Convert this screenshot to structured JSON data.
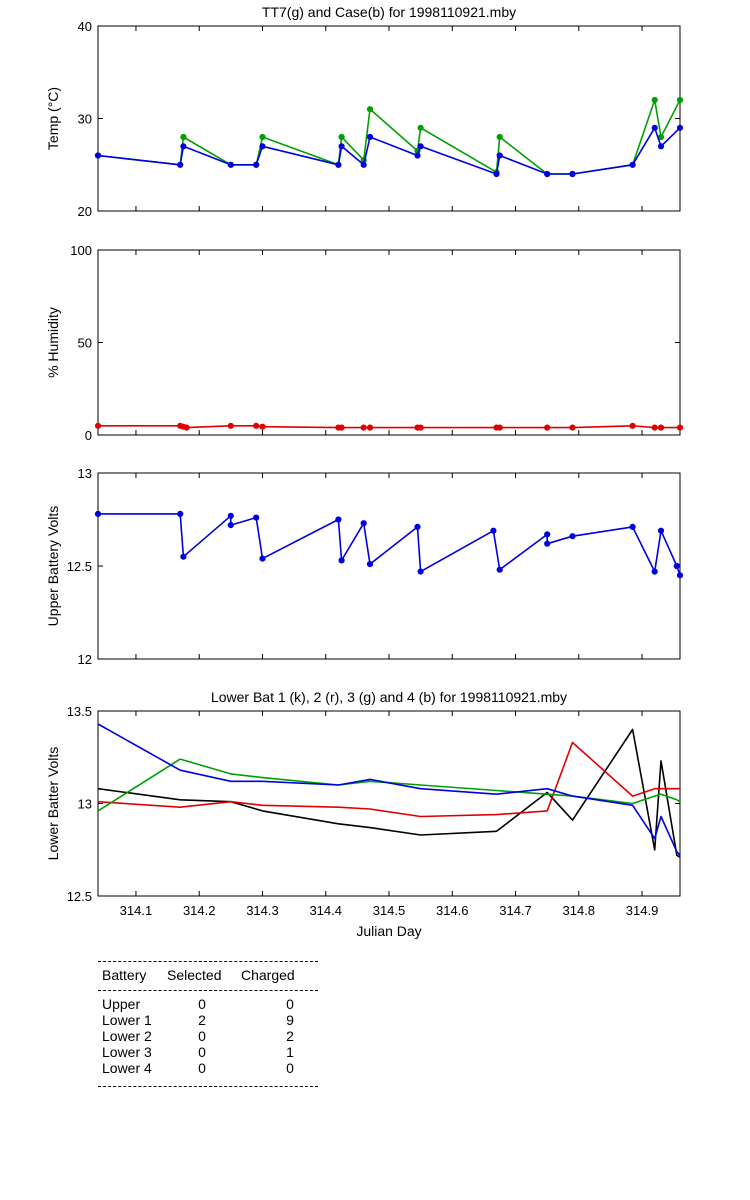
{
  "chart_data": [
    {
      "type": "line",
      "title": "TT7(g) and Case(b) for 1998110921.mby",
      "xlabel": "",
      "ylabel": "Temp  (°C)",
      "xlim": [
        314.04,
        314.96
      ],
      "ylim": [
        20,
        40
      ],
      "yticks": [
        20,
        30,
        40
      ],
      "markers": true,
      "series": [
        {
          "color": "#00a000",
          "x": [
            314.04,
            314.17,
            314.175,
            314.25,
            314.29,
            314.3,
            314.42,
            314.425,
            314.46,
            314.47,
            314.545,
            314.55,
            314.67,
            314.675,
            314.75,
            314.79,
            314.885,
            314.92,
            314.93,
            314.96
          ],
          "y": [
            26,
            25,
            28,
            25,
            25,
            28,
            25,
            28,
            25.5,
            31,
            26.5,
            29,
            24.2,
            28,
            24,
            24,
            25,
            32,
            28,
            32
          ]
        },
        {
          "color": "#0000e0",
          "x": [
            314.04,
            314.17,
            314.175,
            314.25,
            314.29,
            314.3,
            314.42,
            314.425,
            314.46,
            314.47,
            314.545,
            314.55,
            314.67,
            314.675,
            314.75,
            314.79,
            314.885,
            314.92,
            314.93,
            314.96
          ],
          "y": [
            26,
            25,
            27,
            25,
            25,
            27,
            25,
            27,
            25,
            28,
            26,
            27,
            24,
            26,
            24,
            24,
            25,
            29,
            27,
            29
          ]
        }
      ]
    },
    {
      "type": "line",
      "title": "",
      "xlabel": "",
      "ylabel": "% Humidity",
      "xlim": [
        314.04,
        314.96
      ],
      "ylim": [
        0,
        100
      ],
      "yticks": [
        0,
        50,
        100
      ],
      "markers": true,
      "series": [
        {
          "color": "#e00000",
          "x": [
            314.04,
            314.17,
            314.175,
            314.18,
            314.25,
            314.29,
            314.3,
            314.42,
            314.425,
            314.46,
            314.47,
            314.545,
            314.55,
            314.67,
            314.675,
            314.75,
            314.79,
            314.885,
            314.92,
            314.93,
            314.96
          ],
          "y": [
            5,
            5,
            4.5,
            4,
            5,
            5,
            4.5,
            4,
            4,
            4,
            4,
            4,
            4,
            4,
            4,
            4,
            4,
            5,
            4,
            4,
            4
          ]
        }
      ]
    },
    {
      "type": "line",
      "title": "",
      "xlabel": "",
      "ylabel": "Upper Battery Volts",
      "xlim": [
        314.04,
        314.96
      ],
      "ylim": [
        12,
        13
      ],
      "yticks": [
        12,
        12.5,
        13
      ],
      "markers": true,
      "series": [
        {
          "color": "#0000e0",
          "x": [
            314.04,
            314.17,
            314.175,
            314.25,
            314.25,
            314.29,
            314.3,
            314.42,
            314.425,
            314.46,
            314.47,
            314.545,
            314.55,
            314.665,
            314.675,
            314.75,
            314.75,
            314.79,
            314.885,
            314.92,
            314.93,
            314.955,
            314.96
          ],
          "y": [
            12.78,
            12.78,
            12.55,
            12.77,
            12.72,
            12.76,
            12.54,
            12.75,
            12.53,
            12.73,
            12.51,
            12.71,
            12.47,
            12.69,
            12.48,
            12.67,
            12.62,
            12.66,
            12.71,
            12.47,
            12.69,
            12.5,
            12.45
          ]
        }
      ]
    },
    {
      "type": "line",
      "title": "Lower Bat 1 (k), 2 (r), 3 (g) and 4 (b) for 1998110921.mby",
      "xlabel": "Julian Day",
      "ylabel": "Lower Batter Volts",
      "xlim": [
        314.04,
        314.96
      ],
      "ylim": [
        12.5,
        13.5
      ],
      "yticks": [
        12.5,
        13,
        13.5
      ],
      "xticks": [
        314.1,
        314.2,
        314.3,
        314.4,
        314.5,
        314.6,
        314.7,
        314.8,
        314.9
      ],
      "markers": false,
      "series": [
        {
          "color": "#000000",
          "x": [
            314.04,
            314.17,
            314.25,
            314.3,
            314.42,
            314.47,
            314.55,
            314.67,
            314.75,
            314.79,
            314.885,
            314.92,
            314.93,
            314.955,
            314.96
          ],
          "y": [
            13.08,
            13.02,
            13.01,
            12.96,
            12.89,
            12.87,
            12.83,
            12.85,
            13.06,
            12.91,
            13.4,
            12.75,
            13.23,
            12.72,
            12.71
          ]
        },
        {
          "color": "#e00000",
          "x": [
            314.04,
            314.17,
            314.25,
            314.3,
            314.42,
            314.47,
            314.55,
            314.67,
            314.75,
            314.79,
            314.885,
            314.92,
            314.93,
            314.955,
            314.96
          ],
          "y": [
            13.01,
            12.98,
            13.01,
            12.99,
            12.98,
            12.97,
            12.93,
            12.94,
            12.96,
            13.33,
            13.04,
            13.08,
            13.08,
            13.08,
            13.08
          ]
        },
        {
          "color": "#00a000",
          "x": [
            314.04,
            314.17,
            314.25,
            314.3,
            314.42,
            314.47,
            314.55,
            314.67,
            314.75,
            314.79,
            314.885,
            314.92,
            314.93,
            314.955,
            314.96
          ],
          "y": [
            12.96,
            13.24,
            13.16,
            13.14,
            13.1,
            13.12,
            13.1,
            13.07,
            13.05,
            13.04,
            13.0,
            13.04,
            13.05,
            13.02,
            13.01
          ]
        },
        {
          "color": "#0000e0",
          "x": [
            314.04,
            314.17,
            314.25,
            314.3,
            314.42,
            314.47,
            314.55,
            314.67,
            314.75,
            314.79,
            314.885,
            314.92,
            314.93,
            314.955,
            314.96
          ],
          "y": [
            13.43,
            13.18,
            13.12,
            13.12,
            13.1,
            13.13,
            13.08,
            13.05,
            13.08,
            13.04,
            12.99,
            12.81,
            12.93,
            12.74,
            12.72
          ]
        }
      ]
    }
  ],
  "table": {
    "headers": [
      "Battery",
      "Selected",
      "Charged"
    ],
    "rows": [
      {
        "battery": "Upper",
        "selected": "0",
        "charged": "0"
      },
      {
        "battery": "Lower 1",
        "selected": "2",
        "charged": "9"
      },
      {
        "battery": "Lower 2",
        "selected": "0",
        "charged": "2"
      },
      {
        "battery": "Lower 3",
        "selected": "0",
        "charged": "1"
      },
      {
        "battery": "Lower 4",
        "selected": "0",
        "charged": "0"
      }
    ]
  }
}
